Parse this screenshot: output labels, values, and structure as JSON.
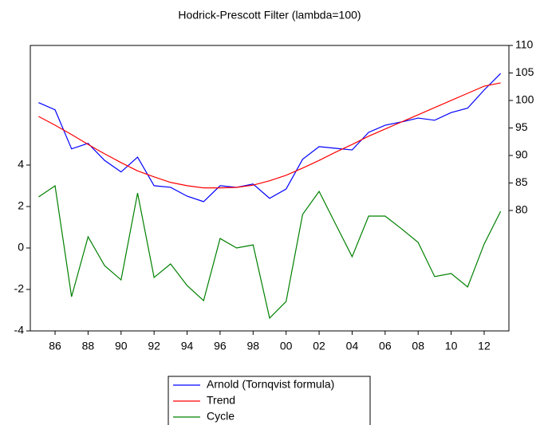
{
  "chart_data": {
    "type": "line",
    "title": "Hodrick-Prescott Filter (lambda=100)",
    "x": [
      1985,
      1986,
      1987,
      1988,
      1989,
      1990,
      1991,
      1992,
      1993,
      1994,
      1995,
      1996,
      1997,
      1998,
      1999,
      2000,
      2001,
      2002,
      2003,
      2004,
      2005,
      2006,
      2007,
      2008,
      2009,
      2010,
      2011,
      2012,
      2013
    ],
    "xlim": [
      1984.5,
      2013.5
    ],
    "xticks": [
      {
        "value": 1986,
        "label": "86"
      },
      {
        "value": 1988,
        "label": "88"
      },
      {
        "value": 1990,
        "label": "90"
      },
      {
        "value": 1992,
        "label": "92"
      },
      {
        "value": 1994,
        "label": "94"
      },
      {
        "value": 1996,
        "label": "96"
      },
      {
        "value": 1998,
        "label": "98"
      },
      {
        "value": 2000,
        "label": "00"
      },
      {
        "value": 2002,
        "label": "02"
      },
      {
        "value": 2004,
        "label": "04"
      },
      {
        "value": 2006,
        "label": "06"
      },
      {
        "value": 2008,
        "label": "08"
      },
      {
        "value": 2010,
        "label": "10"
      },
      {
        "value": 2012,
        "label": "12"
      }
    ],
    "ylim": [
      -4,
      9.77
    ],
    "yticks": [
      -4,
      -2,
      0,
      2,
      4
    ],
    "y2lim": [
      58.1,
      110
    ],
    "y2ticks": [
      80,
      85,
      90,
      95,
      100,
      105,
      110
    ],
    "legend": "bottom-center",
    "series": [
      {
        "name": "Arnold (Tornqvist formula)",
        "color": "#0000ff",
        "axis": "y2",
        "values": [
          99.6,
          98.3,
          91.2,
          92.2,
          89.1,
          87.0,
          89.7,
          84.5,
          84.2,
          82.6,
          81.6,
          84.5,
          84.2,
          84.8,
          82.2,
          83.9,
          89.3,
          91.6,
          91.3,
          91.0,
          94.2,
          95.5,
          96.1,
          96.8,
          96.4,
          97.8,
          98.6,
          101.9,
          104.9
        ]
      },
      {
        "name": "Trend",
        "color": "#ff0000",
        "axis": "y2",
        "values": [
          97.1,
          95.5,
          93.8,
          92.0,
          90.3,
          88.7,
          87.2,
          86.1,
          85.1,
          84.5,
          84.1,
          84.1,
          84.2,
          84.6,
          85.4,
          86.4,
          87.7,
          89.1,
          90.6,
          92.0,
          93.5,
          94.8,
          96.1,
          97.4,
          98.7,
          100.0,
          101.3,
          102.6,
          103.2
        ]
      },
      {
        "name": "Cycle",
        "color": "#008000",
        "values": [
          2.46,
          3.0,
          -2.35,
          0.54,
          -0.85,
          -1.54,
          2.65,
          -1.42,
          -0.77,
          -1.81,
          -2.54,
          0.46,
          0.0,
          0.15,
          -3.38,
          -2.58,
          1.62,
          2.73,
          1.15,
          -0.42,
          1.54,
          1.54,
          0.92,
          0.27,
          -1.38,
          -1.23,
          -1.88,
          0.19,
          1.77
        ]
      }
    ]
  }
}
